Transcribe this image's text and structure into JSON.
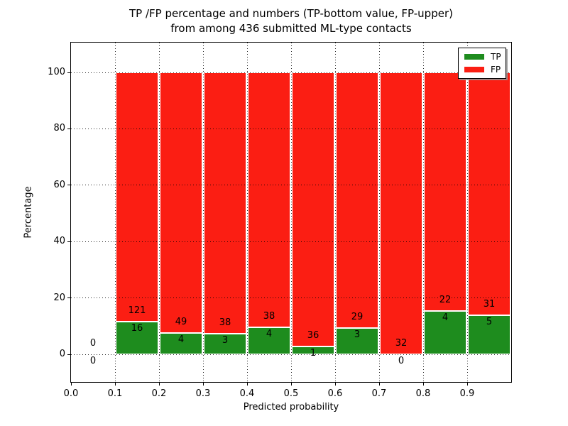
{
  "chart_data": {
    "type": "bar",
    "stacked": true,
    "title_line1": "TP /FP percentage and numbers (TP-bottom value, FP-upper)",
    "title_line2": "from among 436 submitted ML-type contacts",
    "xlabel": "Predicted probability",
    "ylabel": "Percentage",
    "total_contacts": 436,
    "xlim": [
      0.0,
      1.0
    ],
    "ylim": [
      -9.8,
      110.6
    ],
    "grid": "dotted",
    "yticks": [
      0,
      20,
      40,
      60,
      80,
      100
    ],
    "xticks": [
      {
        "x": 0.0,
        "label": "0.0"
      },
      {
        "x": 0.1,
        "label": "0.1"
      },
      {
        "x": 0.2,
        "label": "0.2"
      },
      {
        "x": 0.3,
        "label": "0.3"
      },
      {
        "x": 0.4,
        "label": "0.4"
      },
      {
        "x": 0.5,
        "label": "0.5"
      },
      {
        "x": 0.6,
        "label": "0.6"
      },
      {
        "x": 0.7,
        "label": "0.7"
      },
      {
        "x": 0.8,
        "label": "0.8"
      },
      {
        "x": 0.9,
        "label": "0.9"
      }
    ],
    "legend": {
      "position": "upper right",
      "entries": [
        {
          "name": "TP",
          "color": "#1e8c1e"
        },
        {
          "name": "FP",
          "color": "#fb1e13"
        }
      ]
    },
    "bins": [
      {
        "x_range": [
          0.0,
          0.1
        ],
        "tp": 0,
        "fp": 0,
        "tp_pct": 0.0,
        "fp_pct": 0.0
      },
      {
        "x_range": [
          0.1,
          0.2
        ],
        "tp": 16,
        "fp": 121,
        "tp_pct": 11.68,
        "fp_pct": 88.32
      },
      {
        "x_range": [
          0.2,
          0.3
        ],
        "tp": 4,
        "fp": 49,
        "tp_pct": 7.55,
        "fp_pct": 92.45
      },
      {
        "x_range": [
          0.3,
          0.4
        ],
        "tp": 3,
        "fp": 38,
        "tp_pct": 7.32,
        "fp_pct": 92.68
      },
      {
        "x_range": [
          0.4,
          0.5
        ],
        "tp": 4,
        "fp": 38,
        "tp_pct": 9.52,
        "fp_pct": 90.48
      },
      {
        "x_range": [
          0.5,
          0.6
        ],
        "tp": 1,
        "fp": 36,
        "tp_pct": 2.7,
        "fp_pct": 97.3
      },
      {
        "x_range": [
          0.6,
          0.7
        ],
        "tp": 3,
        "fp": 29,
        "tp_pct": 9.38,
        "fp_pct": 90.62
      },
      {
        "x_range": [
          0.7,
          0.8
        ],
        "tp": 0,
        "fp": 32,
        "tp_pct": 0.0,
        "fp_pct": 100.0
      },
      {
        "x_range": [
          0.8,
          0.9
        ],
        "tp": 4,
        "fp": 22,
        "tp_pct": 15.38,
        "fp_pct": 84.62
      },
      {
        "x_range": [
          0.9,
          1.0
        ],
        "tp": 5,
        "fp": 31,
        "tp_pct": 13.89,
        "fp_pct": 86.11
      }
    ]
  }
}
